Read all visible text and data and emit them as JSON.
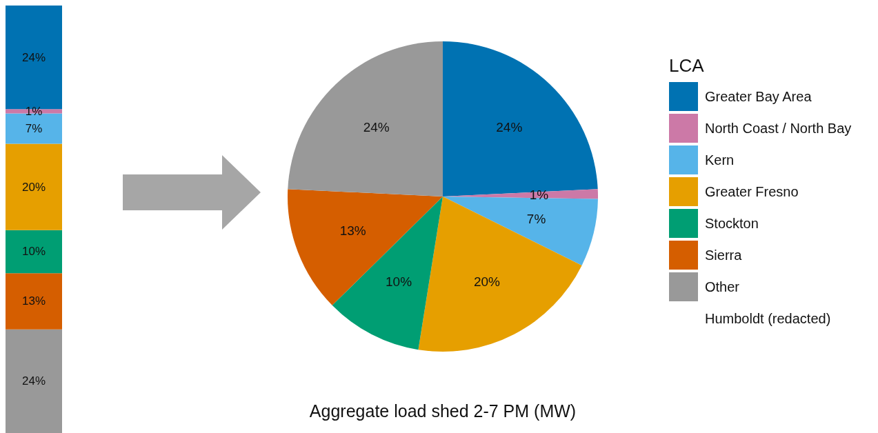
{
  "chart_data": [
    {
      "type": "bar",
      "stacked": true,
      "categories": [
        null
      ],
      "series": [
        {
          "color": "#999999",
          "values": [
            24
          ],
          "value_labels": [
            "24%"
          ]
        },
        {
          "color": "#d55e00",
          "values": [
            13
          ],
          "value_labels": [
            "13%"
          ]
        },
        {
          "color": "#009e73",
          "values": [
            10
          ],
          "value_labels": [
            "10%"
          ]
        },
        {
          "color": "#e69f00",
          "values": [
            20
          ],
          "value_labels": [
            "20%"
          ]
        },
        {
          "color": "#56b4e9",
          "values": [
            7
          ],
          "value_labels": [
            "7%"
          ]
        },
        {
          "color": "#cc79a7",
          "values": [
            1
          ],
          "value_labels": [
            "1%"
          ]
        },
        {
          "color": "#0072b2",
          "values": [
            24
          ],
          "value_labels": [
            "24%"
          ]
        }
      ]
    },
    {
      "type": "pie",
      "title": "Aggregate load shed 2-7 PM (MW)",
      "legend_title": "LCA",
      "legend": "right",
      "categories": [
        "Greater Bay Area",
        "North Coast / North Bay",
        "Kern",
        "Greater Fresno",
        "Stockton",
        "Sierra",
        "Other",
        "Humboldt (redacted)"
      ],
      "values": [
        24,
        1,
        7,
        20,
        10,
        13,
        24,
        0
      ],
      "value_labels": [
        "24%",
        "1%",
        "7%",
        "20%",
        "10%",
        "13%",
        "24%",
        null
      ],
      "colors": [
        "#0072b2",
        "#cc79a7",
        "#56b4e9",
        "#e69f00",
        "#009e73",
        "#d55e00",
        "#999999",
        "#ffffff"
      ]
    }
  ]
}
